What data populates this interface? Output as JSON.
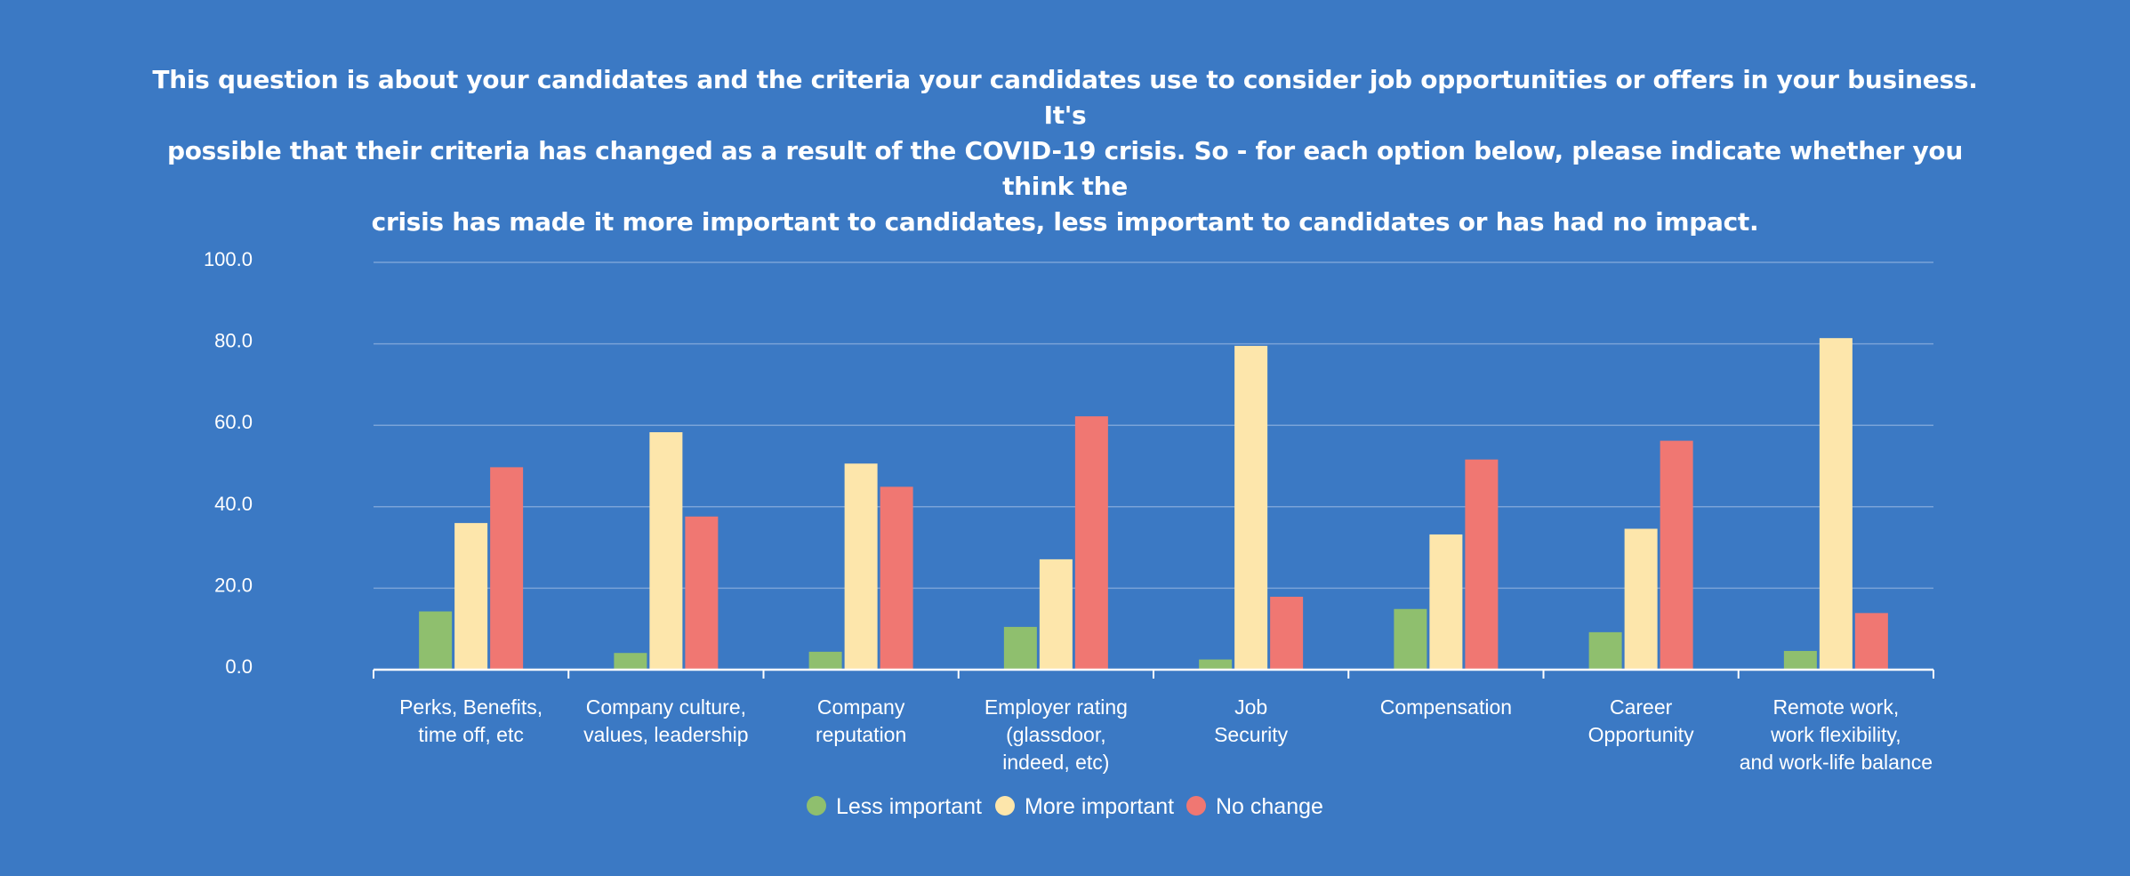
{
  "chart_data": {
    "type": "bar",
    "title_lines": [
      "This question is about your candidates and the criteria your candidates use to consider job opportunities or offers in your business. It's",
      "possible that their criteria has changed as a result of the COVID-19 crisis. So - for each option below, please indicate whether you think the",
      "crisis has made it more important to candidates, less important to candidates or has had no impact."
    ],
    "categories": [
      [
        "Perks, Benefits,",
        "time off, etc"
      ],
      [
        "Company culture,",
        "values, leadership"
      ],
      [
        "Company",
        "reputation"
      ],
      [
        "Employer rating",
        "(glassdoor,",
        "indeed, etc)"
      ],
      [
        "Job",
        "Security"
      ],
      [
        "Compensation"
      ],
      [
        "Career",
        "Opportunity"
      ],
      [
        "Remote work,",
        "work flexibility,",
        "and work-life balance"
      ]
    ],
    "series": [
      {
        "name": "Less important",
        "color": "#8fbf6e",
        "values": [
          14.3,
          4.1,
          4.4,
          10.5,
          2.5,
          14.9,
          9.2,
          4.6
        ]
      },
      {
        "name": "More important",
        "color": "#fde6ab",
        "values": [
          36.0,
          58.3,
          50.6,
          27.1,
          79.5,
          33.2,
          34.6,
          81.4
        ]
      },
      {
        "name": "No change",
        "color": "#f07772",
        "values": [
          49.7,
          37.6,
          44.9,
          62.2,
          17.9,
          51.6,
          56.2,
          13.9
        ]
      }
    ],
    "yticks": [
      "100.0",
      "80.0",
      "60.0",
      "40.0",
      "20.0",
      "0.0"
    ],
    "ylim": [
      0,
      100
    ],
    "grid": true,
    "legend_position": "bottom-center"
  }
}
